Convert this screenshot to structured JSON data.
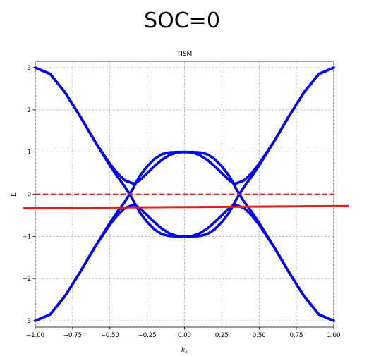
{
  "figure": {
    "big_title": "SOC=0"
  },
  "chart_data": {
    "type": "line",
    "title": "TISM",
    "xlabel": "k_x",
    "ylabel": "E",
    "xlim": [
      -1.0,
      1.0
    ],
    "ylim": [
      -3.15,
      3.15
    ],
    "grid": true,
    "xticks": [
      -1.0,
      -0.75,
      -0.5,
      -0.25,
      0.0,
      0.25,
      0.5,
      0.75,
      1.0
    ],
    "xtick_labels": [
      "−1.00",
      "−0.75",
      "−0.50",
      "−0.25",
      "0.00",
      "0.25",
      "0.50",
      "0.75",
      "1.00"
    ],
    "yticks": [
      -3,
      -2,
      -1,
      0,
      1,
      2,
      3
    ],
    "ytick_labels": [
      "−3",
      "−2",
      "−1",
      "0",
      "1",
      "2",
      "3"
    ],
    "x": [
      -1.0,
      -0.9,
      -0.8,
      -0.7,
      -0.6,
      -0.5,
      -0.45,
      -0.4,
      -0.35,
      -0.333,
      -0.3,
      -0.25,
      -0.2,
      -0.15,
      -0.1,
      -0.05,
      0.0,
      0.05,
      0.1,
      0.15,
      0.2,
      0.25,
      0.3,
      0.333,
      0.35,
      0.4,
      0.45,
      0.5,
      0.6,
      0.7,
      0.8,
      0.9,
      1.0
    ],
    "series": [
      {
        "color": "#0000ee",
        "style": "solid",
        "values": [
          3.0,
          2.85,
          2.41,
          1.85,
          1.25,
          0.72,
          0.5,
          0.33,
          0.26,
          0.25,
          0.33,
          0.5,
          0.67,
          0.82,
          0.93,
          0.99,
          1.0,
          0.99,
          0.93,
          0.82,
          0.67,
          0.5,
          0.33,
          0.25,
          0.26,
          0.33,
          0.5,
          0.72,
          1.25,
          1.85,
          2.41,
          2.85,
          3.0
        ]
      },
      {
        "color": "#0000ee",
        "style": "solid",
        "values": [
          -3.0,
          -2.85,
          -2.41,
          -1.85,
          -1.25,
          -0.72,
          -0.5,
          -0.33,
          -0.26,
          -0.25,
          -0.33,
          -0.5,
          -0.67,
          -0.82,
          -0.93,
          -0.99,
          -1.0,
          -0.99,
          -0.93,
          -0.82,
          -0.67,
          -0.5,
          -0.33,
          -0.25,
          -0.26,
          -0.33,
          -0.5,
          -0.72,
          -1.25,
          -1.85,
          -2.41,
          -2.85,
          -3.0
        ]
      },
      {
        "color": "#0000ee",
        "style": "solid",
        "values": [
          -3.0,
          -2.85,
          -2.41,
          -1.85,
          -1.25,
          -0.68,
          -0.42,
          -0.18,
          0.1,
          0.22,
          0.43,
          0.66,
          0.84,
          0.95,
          0.99,
          1.0,
          1.0,
          1.0,
          0.99,
          0.95,
          0.84,
          0.66,
          0.43,
          0.22,
          0.1,
          -0.18,
          -0.42,
          -0.68,
          -1.25,
          -1.85,
          -2.41,
          -2.85,
          -3.0
        ]
      },
      {
        "color": "#0000ee",
        "style": "solid",
        "values": [
          3.0,
          2.85,
          2.41,
          1.85,
          1.25,
          0.68,
          0.42,
          0.18,
          -0.1,
          -0.22,
          -0.43,
          -0.66,
          -0.84,
          -0.95,
          -0.99,
          -1.0,
          -1.0,
          -1.0,
          -0.99,
          -0.95,
          -0.84,
          -0.66,
          -0.43,
          -0.22,
          -0.1,
          0.18,
          0.42,
          0.68,
          1.25,
          1.85,
          2.41,
          2.85,
          3.0
        ]
      }
    ],
    "hlines": [
      {
        "y": 0.0,
        "color": "#dd2222",
        "style": "dashed"
      }
    ],
    "overlay_line": {
      "x": [
        -1.08,
        1.1
      ],
      "y": [
        -0.33,
        -0.28
      ],
      "color": "#e02020",
      "style": "solid"
    }
  }
}
